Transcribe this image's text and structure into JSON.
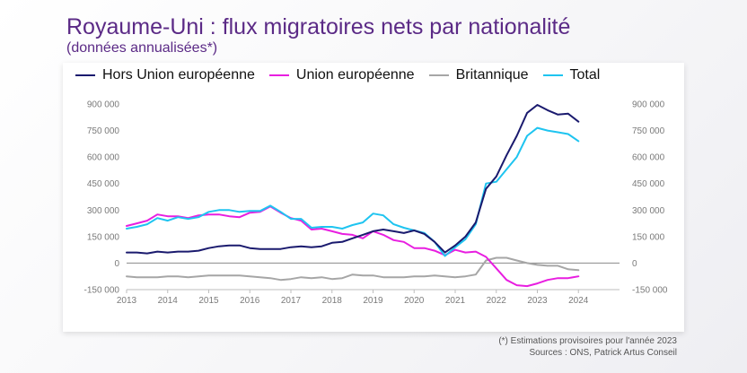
{
  "header": {
    "title": "Royaume-Uni : flux migratoires nets par nationalité",
    "subtitle": "(données annualisées*)"
  },
  "footer": {
    "note": "(*) Estimations provisoires pour l'année 2023",
    "sources": "Sources : ONS, Patrick Artus Conseil"
  },
  "chart_data": {
    "type": "line",
    "title": "Royaume-Uni : flux migratoires nets par nationalité",
    "subtitle": "(données annualisées*)",
    "xlabel": "",
    "ylabel": "",
    "xlim": [
      2013,
      2025
    ],
    "ylim": [
      -150000,
      900000
    ],
    "x_ticks": [
      "2013",
      "2014",
      "2015",
      "2016",
      "2017",
      "2018",
      "2019",
      "2020",
      "2021",
      "2022",
      "2023",
      "2024"
    ],
    "y_ticks": [
      {
        "v": 900000,
        "l": "900 000"
      },
      {
        "v": 750000,
        "l": "750 000"
      },
      {
        "v": 600000,
        "l": "600 000"
      },
      {
        "v": 450000,
        "l": "450 000"
      },
      {
        "v": 300000,
        "l": "300 000"
      },
      {
        "v": 150000,
        "l": "150 000"
      },
      {
        "v": 0,
        "l": "0"
      },
      {
        "v": -150000,
        "l": "-150 000"
      }
    ],
    "legend_position": "top",
    "x": [
      2013.0,
      2013.25,
      2013.5,
      2013.75,
      2014.0,
      2014.25,
      2014.5,
      2014.75,
      2015.0,
      2015.25,
      2015.5,
      2015.75,
      2016.0,
      2016.25,
      2016.5,
      2016.75,
      2017.0,
      2017.25,
      2017.5,
      2017.75,
      2018.0,
      2018.25,
      2018.5,
      2018.75,
      2019.0,
      2019.25,
      2019.5,
      2019.75,
      2020.0,
      2020.25,
      2020.5,
      2020.75,
      2021.0,
      2021.25,
      2021.5,
      2021.75,
      2022.0,
      2022.25,
      2022.5,
      2022.75,
      2023.0,
      2023.25,
      2023.5,
      2023.75,
      2024.0
    ],
    "series": [
      {
        "name": "Hors Union européenne",
        "color": "#1a1a6e",
        "values": [
          60000,
          60000,
          55000,
          65000,
          60000,
          65000,
          65000,
          70000,
          85000,
          95000,
          100000,
          100000,
          85000,
          80000,
          80000,
          80000,
          90000,
          95000,
          90000,
          95000,
          115000,
          120000,
          140000,
          160000,
          180000,
          190000,
          180000,
          170000,
          185000,
          165000,
          120000,
          60000,
          100000,
          150000,
          230000,
          420000,
          490000,
          610000,
          720000,
          850000,
          895000,
          865000,
          840000,
          845000,
          800000
        ]
      },
      {
        "name": "Union européenne",
        "color": "#e81ee0",
        "values": [
          210000,
          225000,
          240000,
          275000,
          265000,
          265000,
          255000,
          270000,
          275000,
          275000,
          265000,
          260000,
          285000,
          290000,
          320000,
          285000,
          255000,
          240000,
          190000,
          195000,
          180000,
          165000,
          160000,
          140000,
          180000,
          160000,
          130000,
          120000,
          85000,
          85000,
          70000,
          45000,
          75000,
          60000,
          65000,
          35000,
          -30000,
          -95000,
          -125000,
          -130000,
          -115000,
          -95000,
          -85000,
          -85000,
          -75000
        ]
      },
      {
        "name": "Britannique",
        "color": "#a6a6a6",
        "values": [
          -75000,
          -80000,
          -80000,
          -80000,
          -75000,
          -75000,
          -80000,
          -75000,
          -70000,
          -70000,
          -70000,
          -70000,
          -75000,
          -80000,
          -85000,
          -95000,
          -90000,
          -80000,
          -85000,
          -80000,
          -90000,
          -85000,
          -65000,
          -70000,
          -70000,
          -80000,
          -80000,
          -80000,
          -75000,
          -75000,
          -70000,
          -75000,
          -80000,
          -75000,
          -65000,
          15000,
          30000,
          30000,
          15000,
          0,
          -10000,
          -15000,
          -15000,
          -35000,
          -40000
        ]
      },
      {
        "name": "Total",
        "color": "#1ec4f0",
        "values": [
          195000,
          205000,
          220000,
          255000,
          240000,
          260000,
          250000,
          260000,
          290000,
          300000,
          300000,
          290000,
          295000,
          295000,
          325000,
          290000,
          250000,
          250000,
          200000,
          205000,
          205000,
          195000,
          215000,
          230000,
          280000,
          270000,
          220000,
          200000,
          185000,
          170000,
          120000,
          40000,
          90000,
          135000,
          220000,
          450000,
          460000,
          530000,
          600000,
          720000,
          765000,
          750000,
          740000,
          730000,
          690000
        ]
      }
    ]
  }
}
